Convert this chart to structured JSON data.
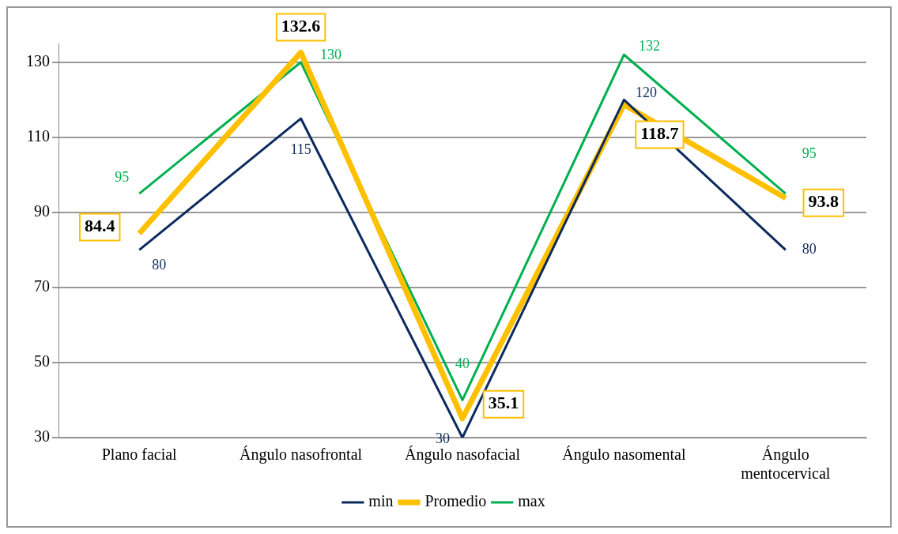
{
  "chart_data": {
    "type": "line",
    "categories": [
      "Plano facial",
      "Ángulo nasofrontal",
      "Ángulo nasofacial",
      "Ángulo nasomental",
      "Ángulo mentocervical"
    ],
    "series": [
      {
        "name": "min",
        "color": "#0d2a5e",
        "values": [
          80,
          115,
          30,
          120,
          80
        ]
      },
      {
        "name": "Promedio",
        "color": "#ffc000",
        "values": [
          84.4,
          132.6,
          35.1,
          118.7,
          93.8
        ]
      },
      {
        "name": "max",
        "color": "#00b050",
        "values": [
          95,
          130,
          40,
          132,
          95
        ]
      }
    ],
    "ylim": [
      30,
      135
    ],
    "yticks": [
      30,
      50,
      70,
      90,
      110,
      130
    ],
    "grid": "y",
    "legend": "bottom",
    "marker": "none",
    "line_style": "solid",
    "data_labels": true
  }
}
